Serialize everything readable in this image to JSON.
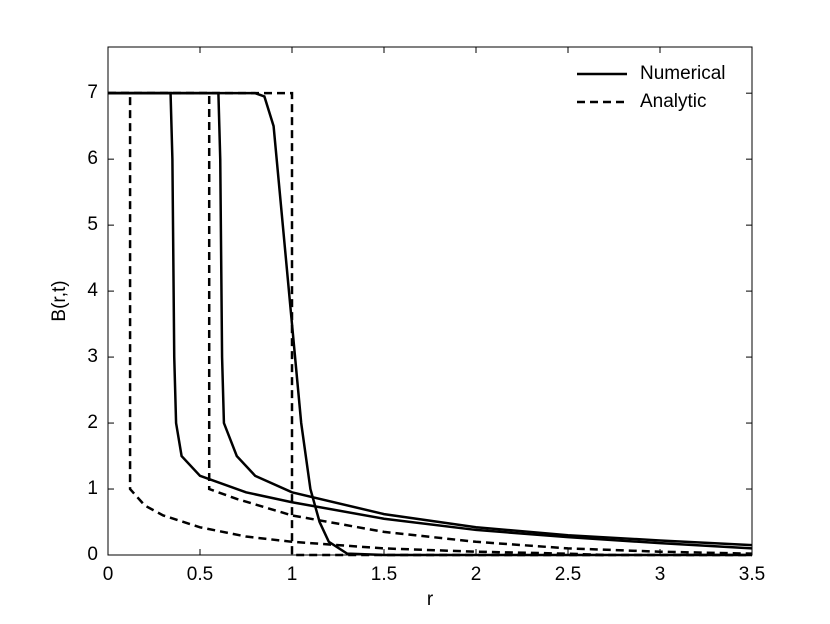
{
  "chart_data": {
    "type": "line",
    "x_label": "r",
    "y_label": "B(r,t)",
    "xlim": [
      0,
      3.5
    ],
    "ylim": [
      0,
      7.7
    ],
    "xticks": [
      0,
      0.5,
      1,
      1.5,
      2,
      2.5,
      3,
      3.5
    ],
    "yticks": [
      0,
      1,
      2,
      3,
      4,
      5,
      6,
      7
    ],
    "legend": "upper right",
    "series": [
      {
        "name": "Numerical",
        "color": "#000000",
        "dash": false,
        "x": [
          0,
          0.34,
          0.35,
          0.36,
          0.37,
          0.4,
          0.5,
          0.75,
          1,
          1.5,
          2,
          2.5,
          3,
          3.5
        ],
        "values": [
          7,
          7,
          6,
          3,
          2,
          1.5,
          1.2,
          0.95,
          0.8,
          0.55,
          0.38,
          0.27,
          0.18,
          0.1
        ]
      },
      {
        "color": "#000000",
        "dash": false,
        "x": [
          0,
          0.6,
          0.61,
          0.62,
          0.63,
          0.7,
          0.8,
          1,
          1.5,
          2,
          2.5,
          3,
          3.5
        ],
        "values": [
          7,
          7,
          6,
          3,
          2,
          1.5,
          1.2,
          0.95,
          0.62,
          0.42,
          0.3,
          0.22,
          0.15
        ]
      },
      {
        "color": "#000000",
        "dash": false,
        "x": [
          0,
          0.8,
          0.85,
          0.9,
          0.95,
          1.0,
          1.05,
          1.1,
          1.15,
          1.2,
          1.3,
          1.5,
          3.5
        ],
        "values": [
          7,
          7,
          6.95,
          6.5,
          5,
          3.5,
          2,
          1,
          0.5,
          0.2,
          0.02,
          0,
          0
        ]
      },
      {
        "name": "Analytic",
        "color": "#000000",
        "dash": true,
        "x": [
          0,
          0.12,
          0.12,
          0.2,
          0.3,
          0.5,
          0.75,
          1,
          1.5,
          2,
          2.5,
          2.7
        ],
        "values": [
          7,
          7,
          1,
          0.75,
          0.6,
          0.42,
          0.28,
          0.2,
          0.1,
          0.05,
          0.02,
          0
        ]
      },
      {
        "color": "#000000",
        "dash": true,
        "x": [
          0,
          0.55,
          0.55,
          0.7,
          1,
          1.5,
          2,
          2.5,
          3,
          3.5
        ],
        "values": [
          7,
          7,
          1,
          0.85,
          0.6,
          0.35,
          0.2,
          0.1,
          0.05,
          0.02
        ]
      },
      {
        "color": "#000000",
        "dash": true,
        "x": [
          0,
          1,
          1,
          3.5
        ],
        "values": [
          7,
          7,
          0,
          0
        ]
      }
    ]
  }
}
